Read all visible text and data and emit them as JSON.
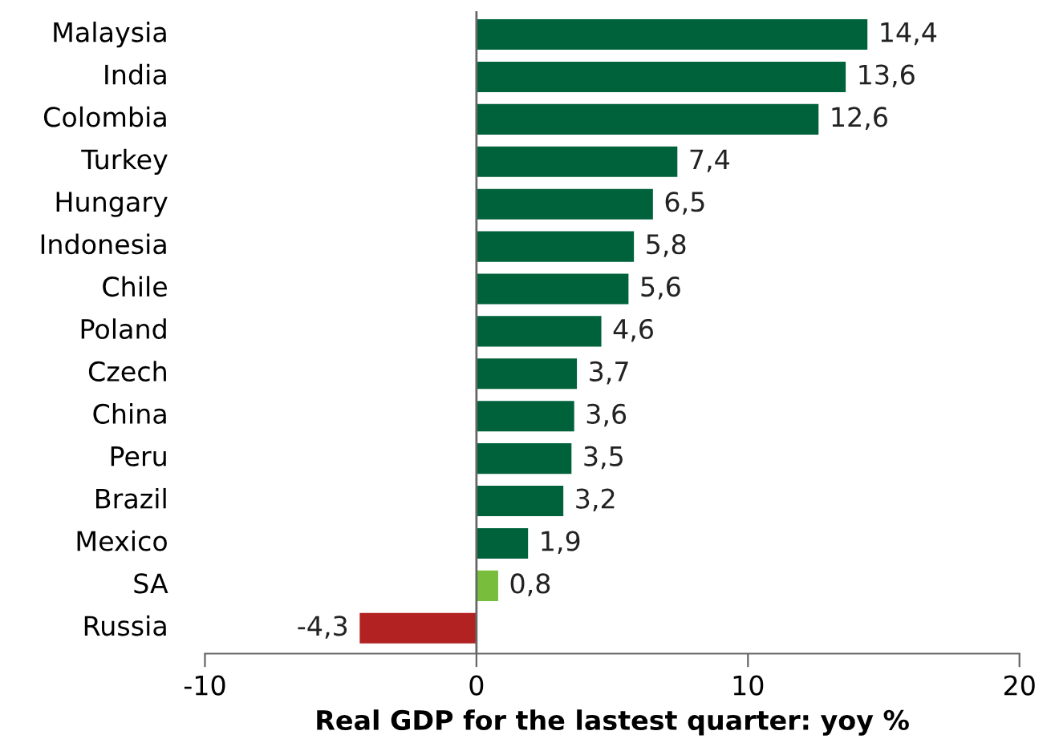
{
  "chart_data": {
    "type": "bar",
    "orientation": "horizontal",
    "xlabel": "Real GDP for the lastest quarter: yoy %",
    "categories": [
      "Malaysia",
      "India",
      "Colombia",
      "Turkey",
      "Hungary",
      "Indonesia",
      "Chile",
      "Poland",
      "Czech",
      "China",
      "Peru",
      "Brazil",
      "Mexico",
      "SA",
      "Russia"
    ],
    "values": [
      14.4,
      13.6,
      12.6,
      7.4,
      6.5,
      5.8,
      5.6,
      4.6,
      3.7,
      3.6,
      3.5,
      3.2,
      1.9,
      0.8,
      -4.3
    ],
    "value_labels": [
      "14,4",
      "13,6",
      "12,6",
      "7,4",
      "6,5",
      "5,8",
      "5,6",
      "4,6",
      "3,7",
      "3,6",
      "3,5",
      "3,2",
      "1,9",
      "0,8",
      "-4,3"
    ],
    "colors": [
      "#00623b",
      "#00623b",
      "#00623b",
      "#00623b",
      "#00623b",
      "#00623b",
      "#00623b",
      "#00623b",
      "#00623b",
      "#00623b",
      "#00623b",
      "#00623b",
      "#00623b",
      "#78bd3c",
      "#b22222"
    ],
    "xlim": [
      -10,
      20
    ],
    "xticks": [
      -10,
      0,
      10,
      20
    ],
    "grid": false,
    "ref_lines": [
      {
        "axis": "x",
        "value": 0,
        "color": "#666666"
      }
    ],
    "legend": false
  }
}
